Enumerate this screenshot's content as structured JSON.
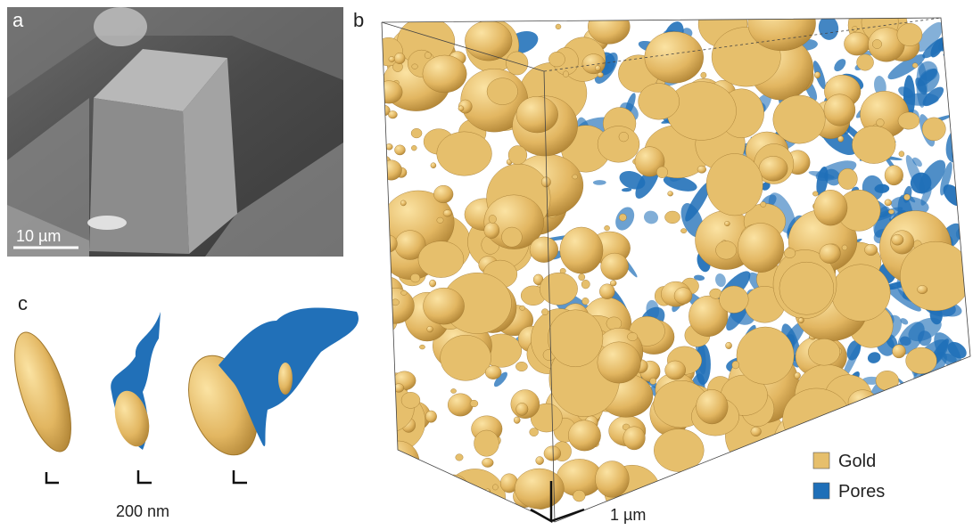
{
  "panels": {
    "a": {
      "label": "a",
      "scale_bar": "10 µm"
    },
    "b": {
      "label": "b",
      "scale_bar": "1 µm",
      "legend": [
        {
          "name": "Gold",
          "color": "#e6bf6c"
        },
        {
          "name": "Pores",
          "color": "#1f6fb8"
        }
      ]
    },
    "c": {
      "label": "c",
      "scale_bar": "200 nm"
    }
  }
}
